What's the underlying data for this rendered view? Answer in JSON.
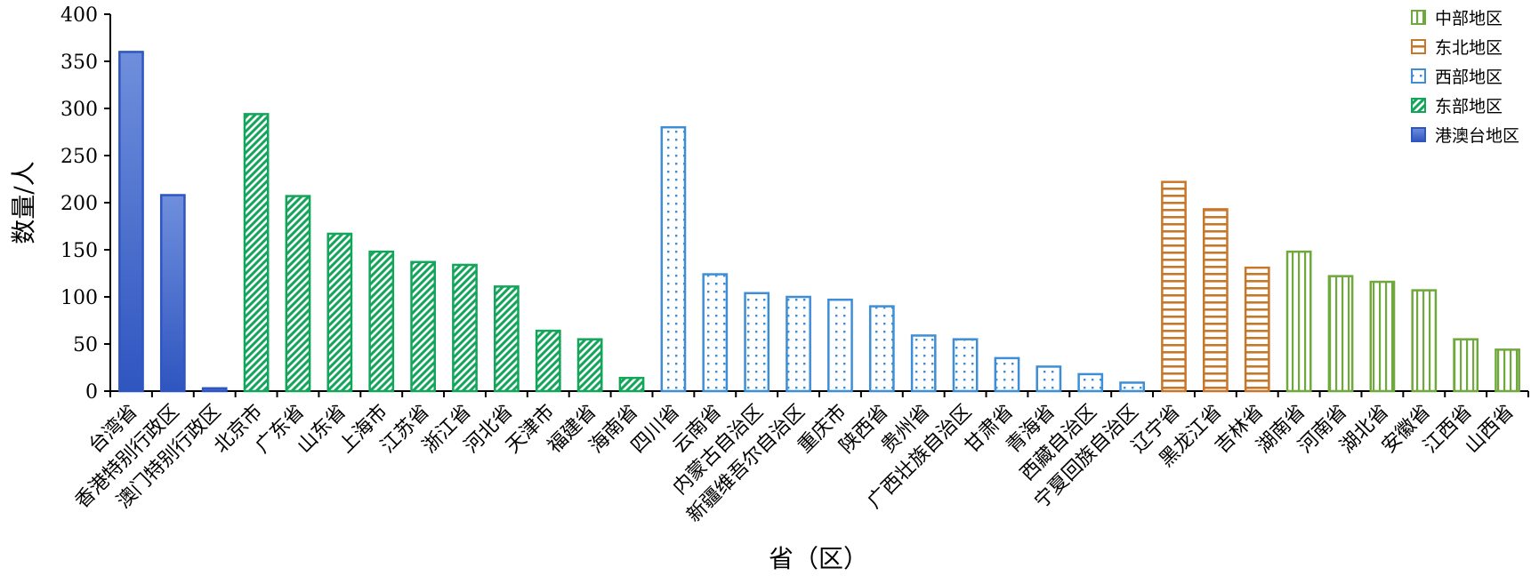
{
  "chart_data": {
    "type": "bar",
    "title": "",
    "xlabel": "省（区）",
    "ylabel": "数量/人",
    "ylim": [
      0,
      400
    ],
    "yticks": [
      0,
      50,
      100,
      150,
      200,
      250,
      300,
      350,
      400
    ],
    "grid": false,
    "legend_position": "top-right",
    "legend": [
      "中部地区",
      "东北地区",
      "西部地区",
      "东部地区",
      "港澳台地区"
    ],
    "colors": {
      "港澳台地区": "#3a62c8",
      "东部地区": "#13a65a",
      "西部地区": "#3d8ed6",
      "东北地区": "#c8762a",
      "中部地区": "#6fa83c"
    },
    "categories": [
      "台湾省",
      "香港特别行政区",
      "澳门特别行政区",
      "北京市",
      "广东省",
      "山东省",
      "上海市",
      "江苏省",
      "浙江省",
      "河北省",
      "天津市",
      "福建省",
      "海南省",
      "四川省",
      "云南省",
      "内蒙古自治区",
      "新疆维吾尔自治区",
      "重庆市",
      "陕西省",
      "贵州省",
      "广西壮族自治区",
      "甘肃省",
      "青海省",
      "西藏自治区",
      "宁夏回族自治区",
      "辽宁省",
      "黑龙江省",
      "吉林省",
      "湖南省",
      "河南省",
      "湖北省",
      "安徽省",
      "江西省",
      "山西省"
    ],
    "values": [
      360,
      208,
      3,
      294,
      207,
      167,
      148,
      137,
      134,
      111,
      64,
      55,
      14,
      280,
      124,
      104,
      100,
      97,
      90,
      59,
      55,
      35,
      26,
      18,
      9,
      222,
      193,
      131,
      148,
      122,
      116,
      107,
      55,
      44
    ],
    "regions": [
      "港澳台地区",
      "港澳台地区",
      "港澳台地区",
      "东部地区",
      "东部地区",
      "东部地区",
      "东部地区",
      "东部地区",
      "东部地区",
      "东部地区",
      "东部地区",
      "东部地区",
      "东部地区",
      "西部地区",
      "西部地区",
      "西部地区",
      "西部地区",
      "西部地区",
      "西部地区",
      "西部地区",
      "西部地区",
      "西部地区",
      "西部地区",
      "西部地区",
      "西部地区",
      "东北地区",
      "东北地区",
      "东北地区",
      "中部地区",
      "中部地区",
      "中部地区",
      "中部地区",
      "中部地区",
      "中部地区"
    ]
  }
}
